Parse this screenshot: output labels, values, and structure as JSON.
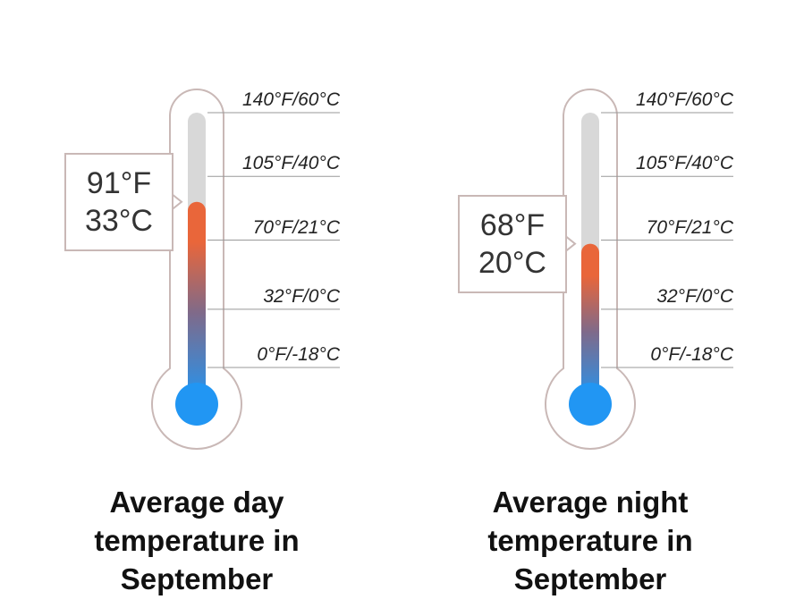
{
  "colors": {
    "outline": "#c9b8b6",
    "tube_empty": "#d8d8d8",
    "mercury_hot": "#e9663a",
    "mercury_cold": "#2196f3",
    "gridline": "#999999"
  },
  "chart_data": [
    {
      "type": "gauge",
      "scale_f": [
        0,
        32,
        70,
        105,
        140
      ],
      "tick_labels": [
        "140°F/60°C",
        "105°F/40°C",
        "70°F/21°C",
        "32°F/0°C",
        "0°F/-18°C"
      ],
      "value_f": 91,
      "value_c": 33,
      "readout": {
        "f": "91°F",
        "c": "33°C"
      },
      "caption": [
        "Average day",
        "temperature in",
        "September"
      ]
    },
    {
      "type": "gauge",
      "scale_f": [
        0,
        32,
        70,
        105,
        140
      ],
      "tick_labels": [
        "140°F/60°C",
        "105°F/40°C",
        "70°F/21°C",
        "32°F/0°C",
        "0°F/-18°C"
      ],
      "value_f": 68,
      "value_c": 20,
      "readout": {
        "f": "68°F",
        "c": "20°C"
      },
      "caption": [
        "Average night",
        "temperature in",
        "September"
      ]
    }
  ]
}
